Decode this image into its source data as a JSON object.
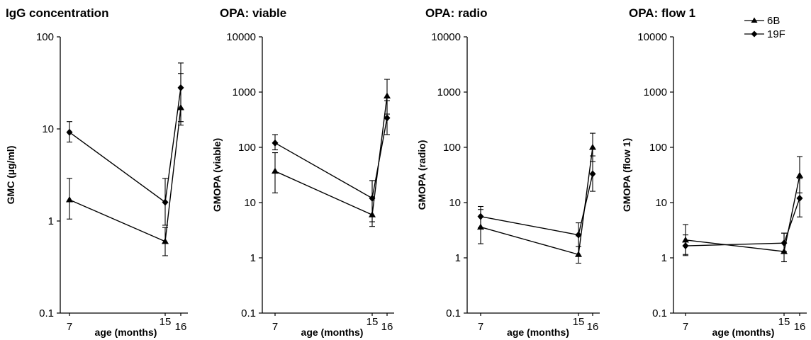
{
  "legend": {
    "series_6B": "6B",
    "series_19F": "19F",
    "placement": "top-right"
  },
  "chart_data": [
    {
      "type": "line",
      "title": "IgG concentration",
      "xlabel": "age (months)",
      "ylabel": "GMC (µg/ml)",
      "yscale": "log",
      "ylim": [
        0.1,
        100
      ],
      "yticks": [
        "100",
        "10",
        "1",
        "0.1"
      ],
      "x": [
        7,
        15,
        16
      ],
      "series": [
        {
          "name": "6B",
          "marker": "triangle",
          "values": [
            1.7,
            0.6,
            17
          ],
          "error_low": [
            1.05,
            0.42,
            11
          ],
          "error_high": [
            2.9,
            0.85,
            40
          ]
        },
        {
          "name": "19F",
          "marker": "diamond",
          "values": [
            9.2,
            1.6,
            28
          ],
          "error_low": [
            7.2,
            0.9,
            12
          ],
          "error_high": [
            12,
            2.9,
            52
          ]
        }
      ]
    },
    {
      "type": "line",
      "title": "OPA: viable",
      "xlabel": "age (months)",
      "ylabel": "GMOPA (viable)",
      "yscale": "log",
      "ylim": [
        0.1,
        10000
      ],
      "yticks": [
        "10000",
        "1000",
        "100",
        "10",
        "1",
        "0.1"
      ],
      "x": [
        7,
        15,
        16
      ],
      "series": [
        {
          "name": "6B",
          "marker": "triangle",
          "values": [
            37,
            6,
            850
          ],
          "error_low": [
            15,
            3.7,
            400
          ],
          "error_high": [
            80,
            25,
            1700
          ]
        },
        {
          "name": "19F",
          "marker": "diamond",
          "values": [
            120,
            12,
            340
          ],
          "error_low": [
            90,
            4.5,
            170
          ],
          "error_high": [
            170,
            25,
            700
          ]
        }
      ]
    },
    {
      "type": "line",
      "title": "OPA: radio",
      "xlabel": "age (months)",
      "ylabel": "GMOPA (radio)",
      "yscale": "log",
      "ylim": [
        0.1,
        10000
      ],
      "yticks": [
        "10000",
        "1000",
        "100",
        "10",
        "1",
        "0.1"
      ],
      "x": [
        7,
        15,
        16
      ],
      "series": [
        {
          "name": "6B",
          "marker": "triangle",
          "values": [
            3.6,
            1.15,
            100
          ],
          "error_low": [
            1.8,
            0.8,
            55
          ],
          "error_high": [
            7.5,
            2.5,
            180
          ]
        },
        {
          "name": "19F",
          "marker": "diamond",
          "values": [
            5.6,
            2.6,
            33
          ],
          "error_low": [
            3.5,
            1.6,
            16
          ],
          "error_high": [
            8.5,
            4.3,
            70
          ]
        }
      ]
    },
    {
      "type": "line",
      "title": "OPA: flow 1",
      "xlabel": "age (months)",
      "ylabel": "GMOPA (flow 1)",
      "yscale": "log",
      "ylim": [
        0.1,
        10000
      ],
      "yticks": [
        "10000",
        "1000",
        "100",
        "10",
        "1",
        "0.1"
      ],
      "x": [
        7,
        15,
        16
      ],
      "series": [
        {
          "name": "6B",
          "marker": "triangle",
          "values": [
            2.1,
            1.3,
            31
          ],
          "error_low": [
            1.1,
            0.85,
            15
          ],
          "error_high": [
            4,
            2.8,
            68
          ]
        },
        {
          "name": "19F",
          "marker": "diamond",
          "values": [
            1.65,
            1.85,
            12
          ],
          "error_low": [
            1.15,
            1.3,
            5.5
          ],
          "error_high": [
            2.6,
            2.8,
            27
          ]
        }
      ]
    }
  ]
}
